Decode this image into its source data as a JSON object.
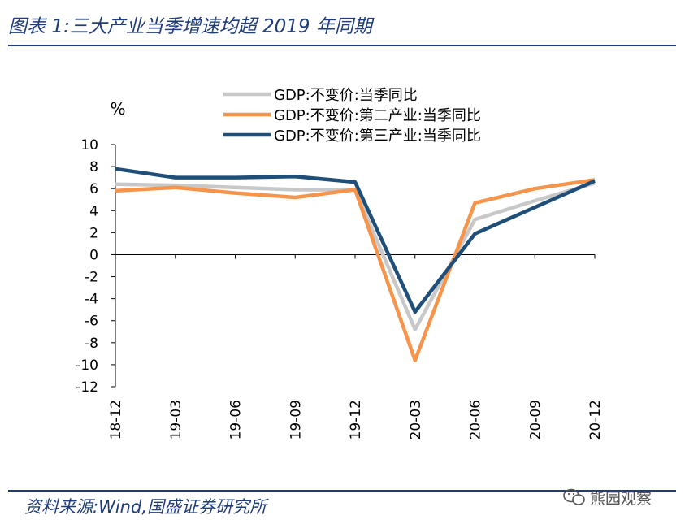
{
  "title": "图表 1:三大产业当季增速均超 2019 年同期",
  "source": "资料来源:Wind,国盛证券研究所",
  "watermark": "熊园观察",
  "chart_data": {
    "type": "line",
    "ylabel": "%",
    "ylim": [
      -12,
      10
    ],
    "yticks": [
      10,
      8,
      6,
      4,
      2,
      0,
      -2,
      -4,
      -6,
      -8,
      -10,
      -12
    ],
    "categories": [
      "18-12",
      "19-03",
      "19-06",
      "19-09",
      "19-12",
      "20-03",
      "20-06",
      "20-09",
      "20-12"
    ],
    "series": [
      {
        "name": "GDP:不变价:当季同比",
        "color": "#c8c8c8",
        "values": [
          6.4,
          6.3,
          6.1,
          5.9,
          5.9,
          -6.8,
          3.2,
          4.9,
          6.5
        ]
      },
      {
        "name": "GDP:不变价:第二产业:当季同比",
        "color": "#f5944a",
        "values": [
          5.8,
          6.1,
          5.6,
          5.2,
          5.9,
          -9.6,
          4.7,
          6.0,
          6.8
        ]
      },
      {
        "name": "GDP:不变价:第三产业:当季同比",
        "color": "#1f4e79",
        "values": [
          7.8,
          7.0,
          7.0,
          7.1,
          6.6,
          -5.2,
          1.9,
          4.3,
          6.7
        ]
      }
    ]
  }
}
